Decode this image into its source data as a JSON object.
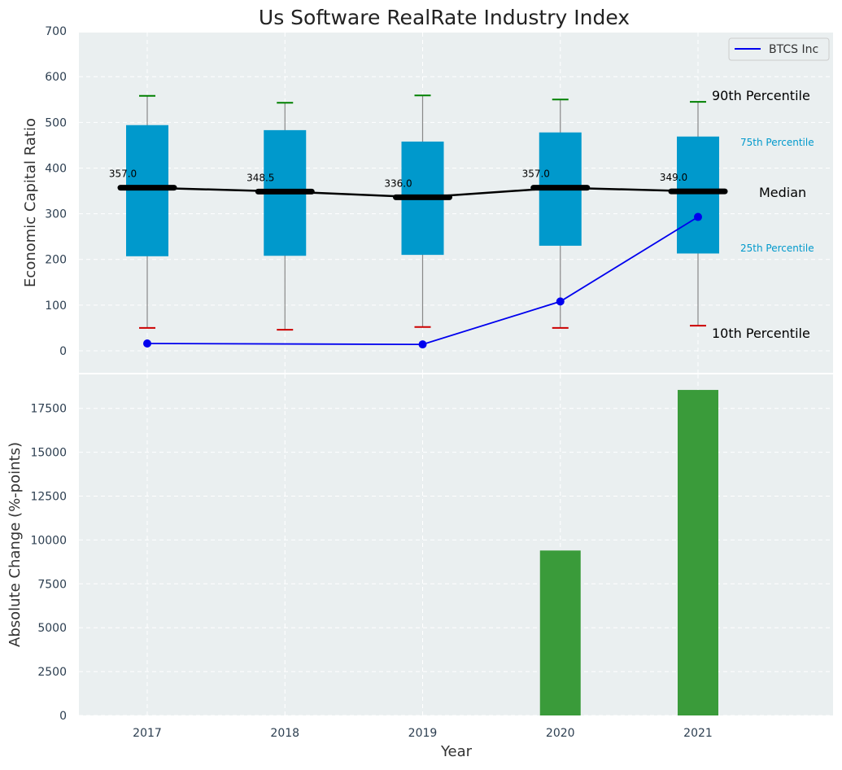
{
  "chart_data": [
    {
      "type": "box",
      "title": "Us Software RealRate Industry Index",
      "ylabel": "Economic Capital Ratio",
      "ylim": [
        -50,
        700
      ],
      "yticks": [
        0,
        100,
        200,
        300,
        400,
        500,
        600,
        700
      ],
      "categories": [
        "2017",
        "2018",
        "2019",
        "2020",
        "2021"
      ],
      "p10": [
        50,
        46,
        52,
        50,
        55
      ],
      "p25": [
        207,
        208,
        210,
        230,
        213
      ],
      "median": [
        357.0,
        348.5,
        336.0,
        357.0,
        349.0
      ],
      "median_labels": [
        "357.0",
        "348.5",
        "336.0",
        "357.0",
        "349.0"
      ],
      "p75": [
        494,
        483,
        458,
        478,
        469
      ],
      "p90": [
        558,
        543,
        559,
        550,
        545
      ],
      "series": [
        {
          "name": "BTCS Inc",
          "x": [
            "2017",
            "2019",
            "2020",
            "2021"
          ],
          "values": [
            16,
            14,
            108,
            293
          ],
          "color": "#0000ee"
        }
      ],
      "percentile_labels": {
        "p90": "90th Percentile",
        "p75": "75th Percentile",
        "median": "Median",
        "p25": "25th Percentile",
        "p10": "10th Percentile"
      },
      "legend": {
        "position": "top-right",
        "entries": [
          "BTCS Inc"
        ]
      },
      "grid": true,
      "colors": {
        "box": "#0099cc",
        "median_line": "#000000",
        "p90_cap": "#008000",
        "p10_cap": "#cc0000",
        "whisker": "#888888",
        "background": "#eaeff0"
      }
    },
    {
      "type": "bar",
      "ylabel": "Absolute Change (%-points)",
      "xlabel": "Year",
      "ylim": [
        0,
        19500
      ],
      "yticks": [
        0,
        2500,
        5000,
        7500,
        10000,
        12500,
        15000,
        17500
      ],
      "categories": [
        "2017",
        "2018",
        "2019",
        "2020",
        "2021"
      ],
      "values": [
        0,
        0,
        0,
        9400,
        18550
      ],
      "grid": true,
      "colors": {
        "bar": "#3a9b3a",
        "background": "#eaeff0"
      }
    }
  ]
}
